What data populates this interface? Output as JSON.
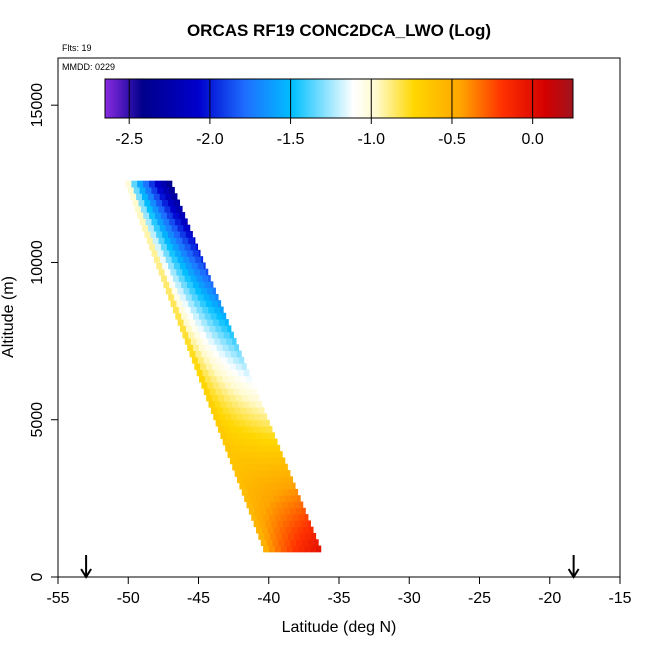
{
  "chart_data": {
    "type": "heatmap",
    "title": "ORCAS RF19 CONC2DCA_LWO (Log)",
    "flights_label": "Flts: 19",
    "date_label": "MMDD: 0229",
    "xlabel": "Latitude (deg N)",
    "ylabel": "Altitude (m)",
    "xlim": [
      -55,
      -15
    ],
    "ylim": [
      0,
      16500
    ],
    "xticks": [
      "-55",
      "-50",
      "-45",
      "-40",
      "-35",
      "-30",
      "-25",
      "-20",
      "-15"
    ],
    "yticks": [
      "0",
      "5000",
      "10000",
      "15000"
    ],
    "colorbar": {
      "ticks": [
        "-2.5",
        "-2.0",
        "-1.5",
        "-1.0",
        "-0.5",
        "0.0"
      ],
      "range": [
        -2.65,
        0.25
      ],
      "colors": [
        "#8a2be2",
        "#00008b",
        "#0000cd",
        "#1e90ff",
        "#00bfff",
        "#ffffff",
        "#fff9c4",
        "#ffd700",
        "#ffa500",
        "#ff4500",
        "#e00000",
        "#a0141e"
      ]
    },
    "profile": {
      "top_altitude_m": 12400,
      "bottom_altitude_m": 800,
      "top_lat_range": [
        -50.2,
        -46.9
      ],
      "bottom_lat_range": [
        -40.4,
        -36.3
      ],
      "value_at_west_edge_top": -1.0,
      "value_at_east_edge_top": -2.5,
      "value_at_west_edge_bottom": -0.5,
      "value_at_east_edge_bottom": 0.0
    },
    "grid": false,
    "arrows_lat": [
      -53,
      -18.3
    ]
  }
}
